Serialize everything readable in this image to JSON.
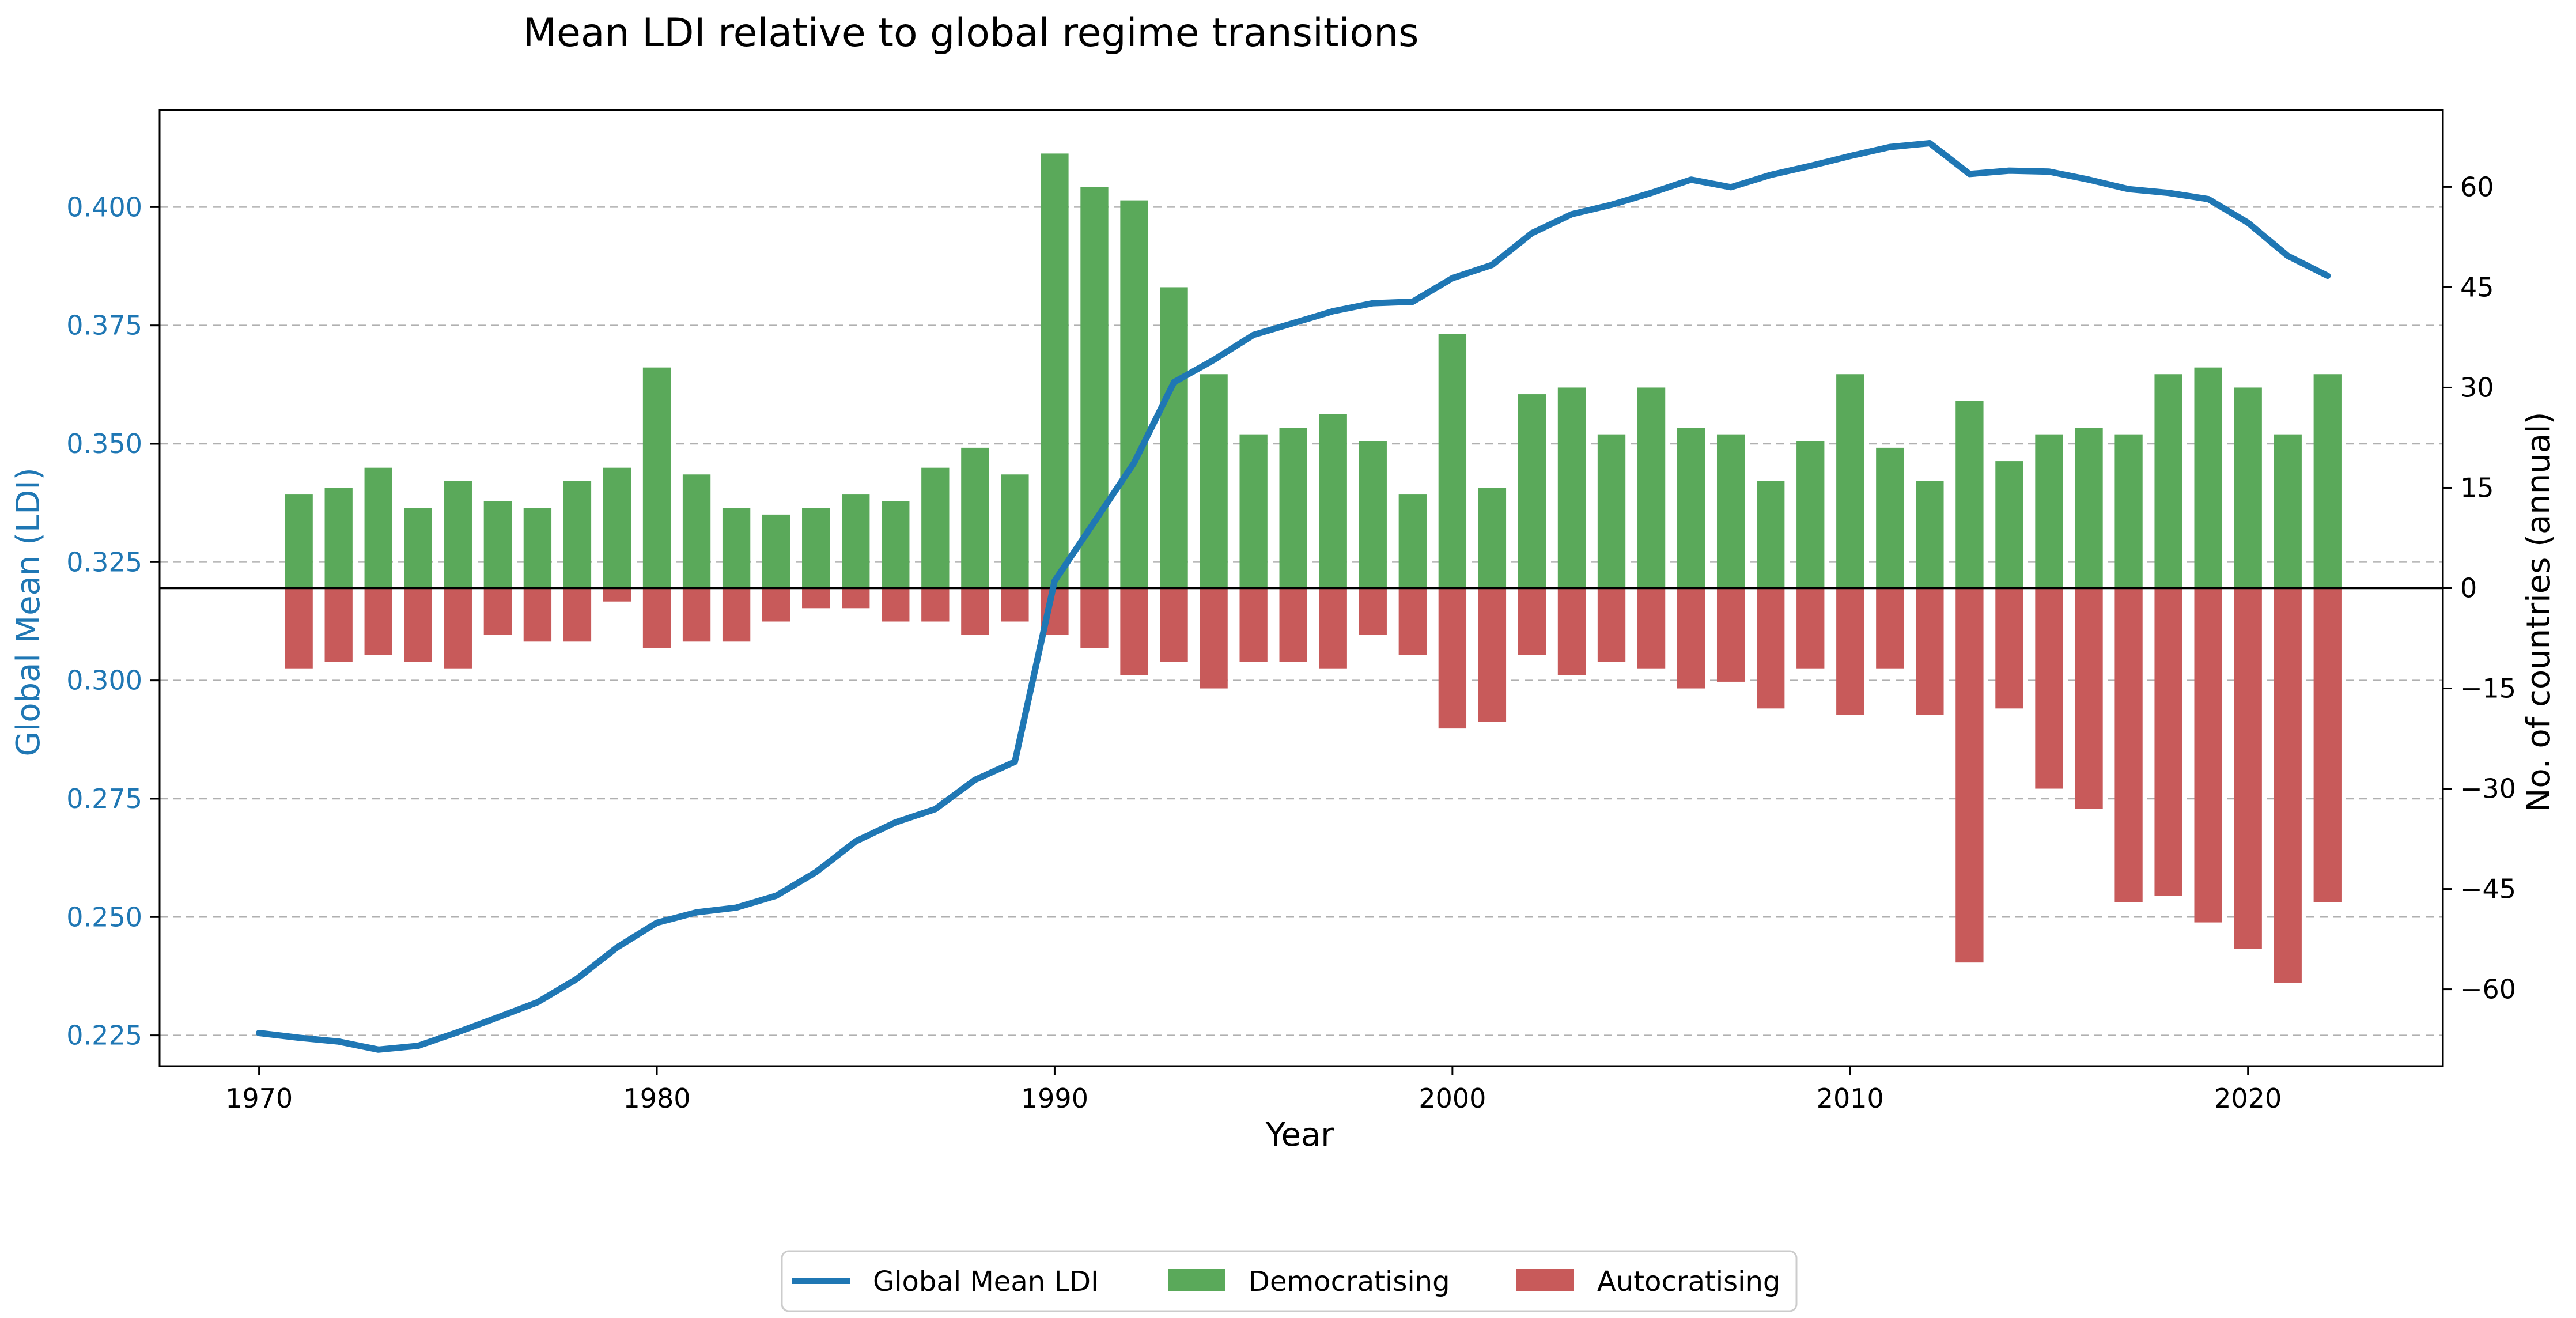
{
  "chart_data": {
    "type": "bar",
    "title": "Mean LDI relative to global regime transitions",
    "xlabel": "Year",
    "ylabel_left": "Global Mean (LDI)",
    "ylabel_right": "No. of countries (annual)",
    "xlim": [
      1967.5,
      2024.9
    ],
    "ylim_left": [
      0.2185,
      0.4205
    ],
    "ylim_right": [
      -71.5,
      71.5
    ],
    "x_ticks": [
      1970,
      1980,
      1990,
      2000,
      2010,
      2020
    ],
    "y_ticks_left": [
      0.225,
      0.25,
      0.275,
      0.3,
      0.325,
      0.35,
      0.375,
      0.4
    ],
    "y_tick_labels_left": [
      "0.225",
      "0.250",
      "0.275",
      "0.300",
      "0.325",
      "0.350",
      "0.375",
      "0.400"
    ],
    "y_ticks_right": [
      -60,
      -45,
      -30,
      -15,
      0,
      15,
      30,
      45,
      60
    ],
    "y_tick_labels_right": [
      "−60",
      "−45",
      "−30",
      "−15",
      "0",
      "15",
      "30",
      "45",
      "60"
    ],
    "grid": "horizontal-dashed",
    "legend_placement": "bottom-center",
    "colors": {
      "ldi_line": "#1f77b4",
      "democratising": "#5aa95a",
      "autocratising": "#c85a5a",
      "axis_left_labels": "#1f77b4"
    },
    "line_series": {
      "name": "Global Mean LDI",
      "x": [
        1970,
        1971,
        1972,
        1973,
        1974,
        1975,
        1976,
        1977,
        1978,
        1979,
        1980,
        1981,
        1982,
        1983,
        1984,
        1985,
        1986,
        1987,
        1988,
        1989,
        1990,
        1991,
        1992,
        1993,
        1994,
        1995,
        1996,
        1997,
        1998,
        1999,
        2000,
        2001,
        2002,
        2003,
        2004,
        2005,
        2006,
        2007,
        2008,
        2009,
        2010,
        2011,
        2012,
        2013,
        2014,
        2015,
        2016,
        2017,
        2018,
        2019,
        2020,
        2021,
        2022
      ],
      "y": [
        0.2255,
        0.2245,
        0.2237,
        0.222,
        0.2228,
        0.2257,
        0.2288,
        0.232,
        0.237,
        0.2436,
        0.2488,
        0.251,
        0.252,
        0.2545,
        0.2595,
        0.266,
        0.27,
        0.2728,
        0.279,
        0.2828,
        0.321,
        0.3335,
        0.346,
        0.363,
        0.3677,
        0.373,
        0.3755,
        0.378,
        0.3797,
        0.38,
        0.385,
        0.3878,
        0.3945,
        0.3985,
        0.4005,
        0.403,
        0.4058,
        0.4042,
        0.4068,
        0.4087,
        0.4108,
        0.4127,
        0.4135,
        0.407,
        0.4077,
        0.4075,
        0.4058,
        0.4038,
        0.403,
        0.4017,
        0.3967,
        0.3897,
        0.3855
      ]
    },
    "categories": [
      1971,
      1972,
      1973,
      1974,
      1975,
      1976,
      1977,
      1978,
      1979,
      1980,
      1981,
      1982,
      1983,
      1984,
      1985,
      1986,
      1987,
      1988,
      1989,
      1990,
      1991,
      1992,
      1993,
      1994,
      1995,
      1996,
      1997,
      1998,
      1999,
      2000,
      2001,
      2002,
      2003,
      2004,
      2005,
      2006,
      2007,
      2008,
      2009,
      2010,
      2011,
      2012,
      2013,
      2014,
      2015,
      2016,
      2017,
      2018,
      2019,
      2020,
      2021,
      2022
    ],
    "series": [
      {
        "name": "Democratising",
        "values": [
          14,
          15,
          18,
          12,
          16,
          13,
          12,
          16,
          18,
          33,
          17,
          12,
          11,
          12,
          14,
          13,
          18,
          21,
          17,
          65,
          60,
          58,
          45,
          32,
          23,
          24,
          26,
          22,
          14,
          38,
          15,
          29,
          30,
          23,
          30,
          24,
          23,
          16,
          22,
          32,
          21,
          16,
          28,
          19,
          23,
          24,
          23,
          32,
          33,
          30,
          23,
          32
        ]
      },
      {
        "name": "Autocratising",
        "values": [
          -12,
          -11,
          -10,
          -11,
          -12,
          -7,
          -8,
          -8,
          -2,
          -9,
          -8,
          -8,
          -5,
          -3,
          -3,
          -5,
          -5,
          -7,
          -5,
          -7,
          -9,
          -13,
          -11,
          -15,
          -11,
          -11,
          -12,
          -7,
          -10,
          -21,
          -20,
          -10,
          -13,
          -11,
          -12,
          -15,
          -14,
          -18,
          -12,
          -19,
          -12,
          -19,
          -56,
          -18,
          -30,
          -33,
          -47,
          -46,
          -50,
          -54,
          -59,
          -47
        ]
      }
    ]
  }
}
